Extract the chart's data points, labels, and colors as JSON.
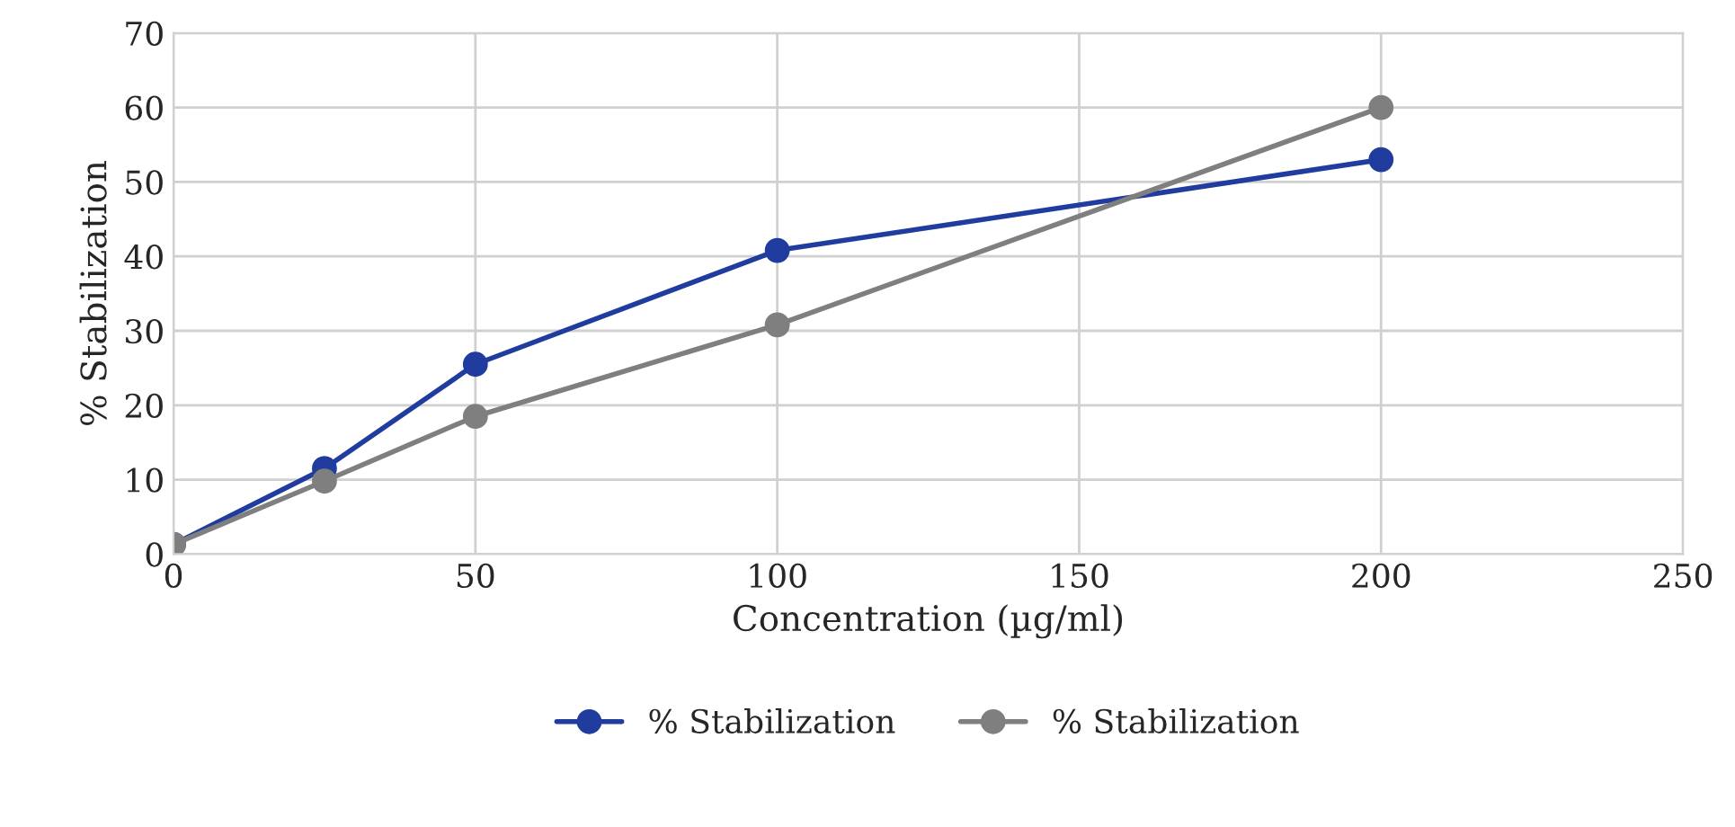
{
  "chart_data": {
    "type": "line",
    "xlabel": "Concentration (µg/ml)",
    "ylabel": "% Stabilization",
    "x": [
      0,
      25,
      50,
      100,
      200
    ],
    "series": [
      {
        "name": "% Stabilization",
        "color": "#1f3c9e",
        "values": [
          1.3,
          11.5,
          25.5,
          40.8,
          53
        ]
      },
      {
        "name": "% Stabilization",
        "color": "#7f7f7f",
        "values": [
          1.3,
          9.8,
          18.5,
          30.8,
          60
        ]
      }
    ],
    "xlim": [
      0,
      250
    ],
    "xticks": [
      0,
      50,
      100,
      150,
      200,
      250
    ],
    "ylim": [
      0,
      70
    ],
    "yticks": [
      0,
      10,
      20,
      30,
      40,
      50,
      60,
      70
    ],
    "grid": true,
    "legend": "bottom",
    "marker": "circle",
    "line_style": "solid"
  }
}
